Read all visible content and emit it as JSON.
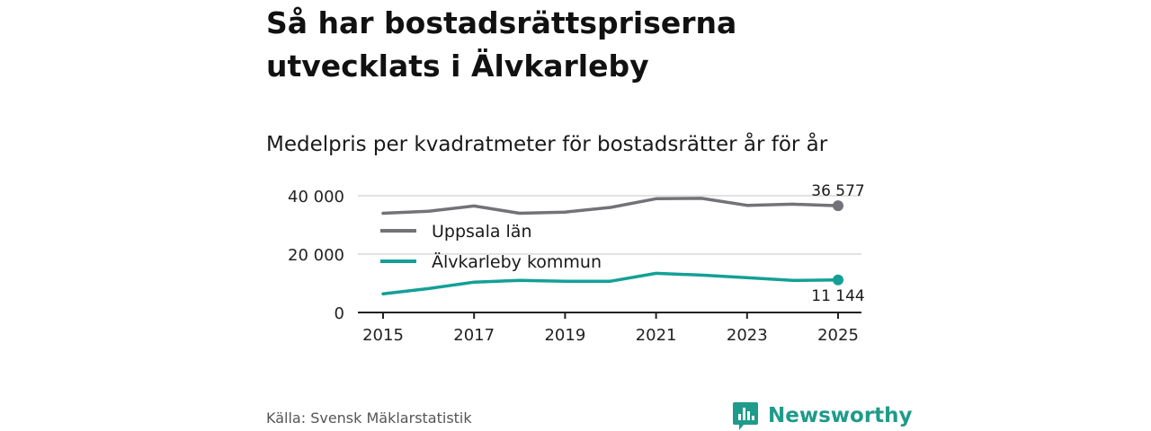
{
  "header": {
    "title": "Så har bostadsrättspriserna utvecklats i Älvkarleby",
    "subtitle": "Medelpris per kvadratmeter för bostadsrätter år för år"
  },
  "footer": {
    "source": "Källa: Svensk Mäklarstatistik",
    "brand": "Newsworthy",
    "brand_icon": "newsworthy-logo-icon"
  },
  "colors": {
    "series_uppsala": "#737278",
    "series_alvkarleby": "#14a096",
    "grid": "#d9d9d9",
    "axis": "#222222",
    "brand": "#1f9b8a"
  },
  "chart_data": {
    "type": "line",
    "title": "Medelpris per kvadratmeter för bostadsrätter år för år",
    "xlabel": "",
    "ylabel": "",
    "x": [
      2015,
      2016,
      2017,
      2018,
      2019,
      2020,
      2021,
      2022,
      2023,
      2024,
      2025
    ],
    "x_ticks": [
      2015,
      2017,
      2019,
      2021,
      2023,
      2025
    ],
    "x_tick_labels": [
      "2015",
      "2017",
      "2019",
      "2021",
      "2023",
      "2025"
    ],
    "ylim": [
      0,
      40000
    ],
    "y_ticks": [
      0,
      20000,
      40000
    ],
    "y_tick_labels": [
      "0",
      "20 000",
      "40 000"
    ],
    "grid": true,
    "legend_position": "top-left",
    "series": [
      {
        "name": "Uppsala län",
        "color_key": "series_uppsala",
        "values": [
          34000,
          34700,
          36500,
          34000,
          34400,
          36000,
          39000,
          39100,
          36700,
          37100,
          36577
        ],
        "end_label": "36 577",
        "end_label_position": "above"
      },
      {
        "name": "Älvkarleby kommun",
        "color_key": "series_alvkarleby",
        "values": [
          6400,
          8200,
          10400,
          11000,
          10700,
          10700,
          13400,
          12800,
          11900,
          11000,
          11144
        ],
        "end_label": "11 144",
        "end_label_position": "below"
      }
    ]
  }
}
